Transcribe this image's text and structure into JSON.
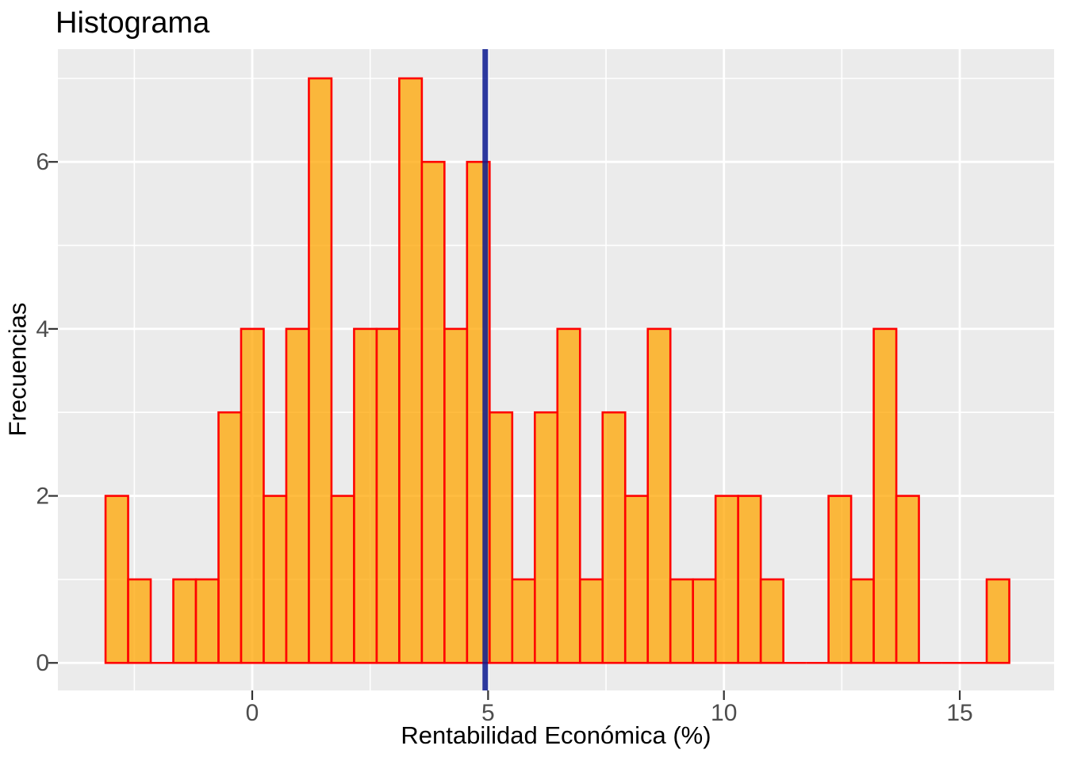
{
  "chart_data": {
    "type": "bar",
    "subtype": "histogram",
    "title": "Histograma",
    "xlabel": "Rentabilidad Económica (%)",
    "ylabel": "Frecuencias",
    "bins": {
      "start": -3.11,
      "width": 0.479
    },
    "counts": [
      2,
      1,
      0,
      1,
      1,
      3,
      4,
      2,
      4,
      7,
      2,
      4,
      4,
      7,
      6,
      4,
      6,
      3,
      1,
      3,
      4,
      1,
      3,
      2,
      4,
      1,
      1,
      2,
      2,
      1,
      0,
      0,
      2,
      1,
      4,
      2,
      0,
      0,
      0,
      1
    ],
    "vline": {
      "x": 4.94
    },
    "x_ticks": {
      "major": [
        0,
        5,
        10,
        15
      ],
      "minor": [
        -2.5,
        2.5,
        7.5,
        12.5
      ]
    },
    "y_ticks": {
      "major": [
        0,
        2,
        4,
        6
      ],
      "minor": [
        1,
        3,
        5,
        7
      ]
    },
    "xlim": [
      -4.12,
      17.0
    ],
    "ylim": [
      -0.33,
      7.35
    ],
    "grid": true,
    "legend_position": "none",
    "colors": {
      "panel_bg": "#EBEBEB",
      "grid": "#FFFFFF",
      "bar_fill": "#FFA500",
      "bar_fill_opacity": 0.75,
      "bar_stroke": "#FF0000",
      "vline_fill": "#0A1991",
      "vline_opacity": 0.85,
      "tick_mark": "#333333",
      "tick_label": "#4D4D4D",
      "text": "#000000"
    }
  }
}
